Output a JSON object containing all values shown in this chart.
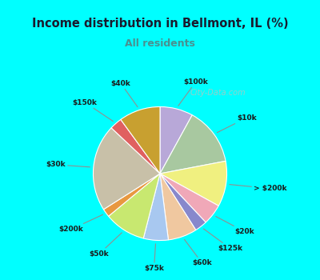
{
  "title": "Income distribution in Bellmont, IL (%)",
  "subtitle": "All residents",
  "bg_color": "#00FFFF",
  "chart_bg": "#e0f5ee",
  "title_color": "#1a1a2e",
  "subtitle_color": "#4a9090",
  "labels": [
    "$100k",
    "$10k",
    "> $200k",
    "$20k",
    "$125k",
    "$60k",
    "$75k",
    "$50k",
    "$200k",
    "$30k",
    "$150k",
    "$40k"
  ],
  "values": [
    8,
    14,
    11,
    5,
    3,
    7,
    6,
    10,
    2,
    21,
    3,
    10
  ],
  "colors": [
    "#b8a8d8",
    "#a8c8a0",
    "#f0f080",
    "#f0a8b8",
    "#8888cc",
    "#f0c8a0",
    "#a8c8f0",
    "#c8e870",
    "#e89840",
    "#c8c0a8",
    "#e06060",
    "#c8a030"
  ],
  "watermark": "City-Data.com",
  "startangle": 90
}
